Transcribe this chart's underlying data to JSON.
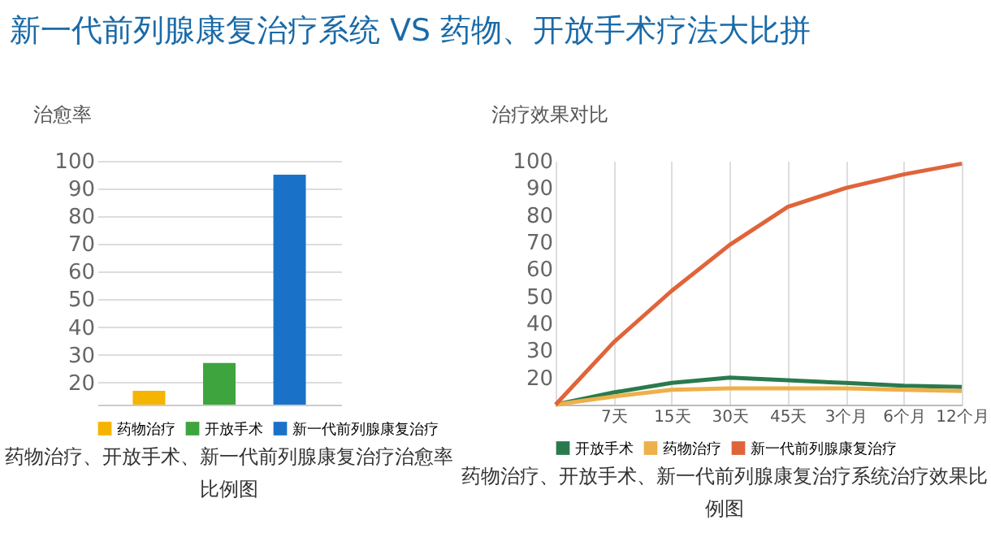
{
  "chart_data": [
    {
      "type": "bar",
      "title": "新一代前列腺康复治疗系统 VS 药物、开放手术疗法大比拼",
      "ylabel": "治愈率",
      "categories": [
        null
      ],
      "series": [
        {
          "name": "药物治疗",
          "color": "#f5b400",
          "values": [
            17
          ]
        },
        {
          "name": "开放手术",
          "color": "#3ea53e",
          "values": [
            27
          ]
        },
        {
          "name": "新一代前列腺康复治疗",
          "color": "#1a72c8",
          "values": [
            95
          ]
        }
      ],
      "ylim": [
        12,
        100
      ],
      "yticks": [
        20,
        30,
        40,
        50,
        60,
        70,
        80,
        90,
        100
      ],
      "grid": "y",
      "legend": "bottom",
      "annotations": [
        "药物治疗、开放手术、新一代前列腺康复治疗治愈率比例图"
      ]
    },
    {
      "type": "line",
      "ylabel": "治疗效果对比",
      "categories": [
        null,
        "7天",
        "15天",
        "30天",
        "45天",
        "3个月",
        "6个月",
        "12个月"
      ],
      "series": [
        {
          "name": "开放手术",
          "color": "#2a7a4e",
          "values": [
            10,
            14.5,
            18,
            20,
            19,
            18,
            17,
            16.5
          ]
        },
        {
          "name": "药物治疗",
          "color": "#eeb04a",
          "values": [
            10,
            13,
            15.5,
            16,
            16,
            16,
            15.5,
            15
          ]
        },
        {
          "name": "新一代前列腺康复治疗",
          "color": "#e0643a",
          "values": [
            10,
            33,
            52,
            69,
            83,
            90,
            95,
            99
          ]
        }
      ],
      "ylim": [
        10,
        100
      ],
      "yticks": [
        20,
        30,
        40,
        50,
        60,
        70,
        80,
        90,
        100
      ],
      "grid": "x",
      "legend": "bottom",
      "marker": "none",
      "annotations": [
        "药物治疗、开放手术、新一代前列腺康复治疗系统治疗效果比例图"
      ]
    }
  ]
}
